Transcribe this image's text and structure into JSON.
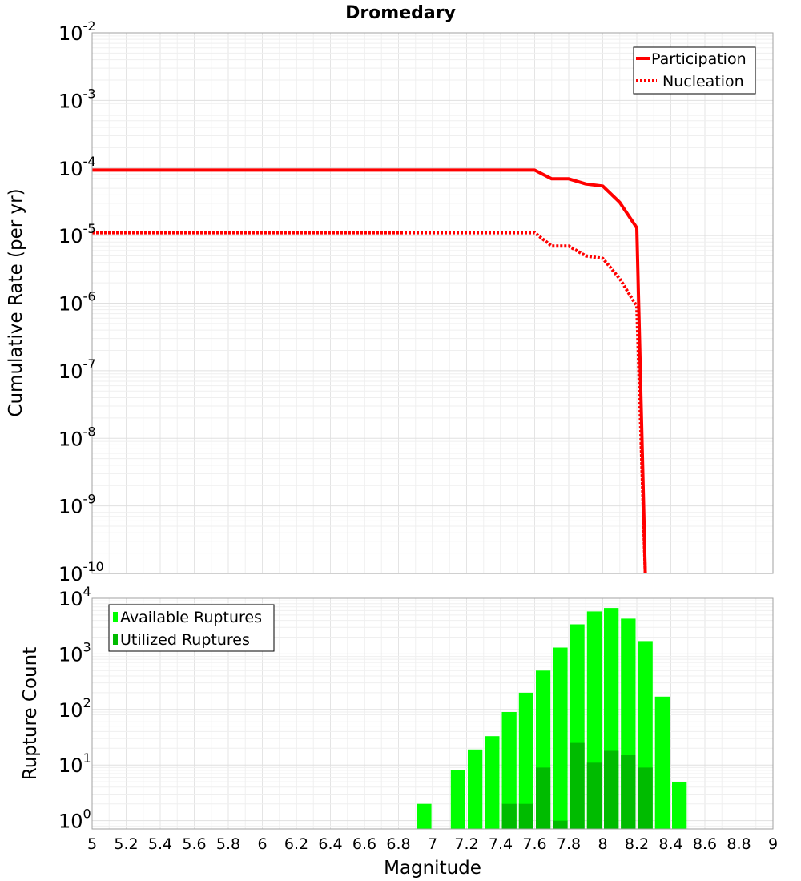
{
  "title": "Dromedary",
  "chart_data": [
    {
      "type": "line",
      "id": "rates",
      "title": "Dromedary",
      "xlabel": "",
      "ylabel": "Cumulative Rate (per yr)",
      "xlim": [
        5,
        9
      ],
      "ylim_exponents": [
        -10,
        -2
      ],
      "yscale": "log",
      "ytick_base": "10",
      "ytick_exponents": [
        "-10",
        "-9",
        "-8",
        "-7",
        "-6",
        "-5",
        "-4",
        "-3",
        "-2"
      ],
      "grid": true,
      "legend_position": "top-right",
      "series": [
        {
          "name": "Participation",
          "style": "solid",
          "color": "#ff0000",
          "x": [
            5.0,
            7.6,
            7.7,
            7.8,
            7.9,
            8.0,
            8.1,
            8.2,
            8.25
          ],
          "y": [
            9.3e-05,
            9.3e-05,
            6.9e-05,
            6.9e-05,
            5.8e-05,
            5.4e-05,
            3.1e-05,
            1.3e-05,
            1e-10
          ]
        },
        {
          "name": "Nucleation",
          "style": "dotted",
          "color": "#ff0000",
          "x": [
            5.0,
            7.6,
            7.7,
            7.8,
            7.9,
            8.0,
            8.1,
            8.2,
            8.25
          ],
          "y": [
            1.1e-05,
            1.1e-05,
            7e-06,
            7e-06,
            5e-06,
            4.6e-06,
            2.3e-06,
            9e-07,
            1e-10
          ]
        }
      ]
    },
    {
      "type": "bar",
      "id": "ruptures",
      "xlabel": "Magnitude",
      "ylabel": "Rupture Count",
      "xlim": [
        5,
        9
      ],
      "ylim_exponents": [
        -0.15,
        4
      ],
      "yscale": "log",
      "ytick_base": "10",
      "ytick_exponents": [
        "0",
        "1",
        "2",
        "3",
        "4"
      ],
      "xticks": [
        "5",
        "5.2",
        "5.4",
        "5.6",
        "5.8",
        "6",
        "6.2",
        "6.4",
        "6.6",
        "6.8",
        "7",
        "7.2",
        "7.4",
        "7.6",
        "7.8",
        "8",
        "8.2",
        "8.4",
        "8.6",
        "8.8",
        "9"
      ],
      "grid": true,
      "legend_position": "top-left",
      "bin_width": 0.1,
      "series": [
        {
          "name": "Available Ruptures",
          "color": "#00ff00",
          "x": [
            6.95,
            7.15,
            7.25,
            7.35,
            7.45,
            7.55,
            7.65,
            7.75,
            7.85,
            7.95,
            8.05,
            8.15,
            8.25,
            8.35,
            8.45
          ],
          "values": [
            2,
            8,
            19,
            33,
            90,
            200,
            500,
            1300,
            3400,
            5800,
            6700,
            4300,
            1700,
            170,
            5
          ]
        },
        {
          "name": "Utilized Ruptures",
          "color": "#00bb00",
          "x": [
            7.45,
            7.55,
            7.65,
            7.75,
            7.85,
            7.95,
            8.05,
            8.15,
            8.25
          ],
          "values": [
            2,
            2,
            9,
            1,
            25,
            11,
            18,
            15,
            9
          ]
        }
      ]
    }
  ]
}
